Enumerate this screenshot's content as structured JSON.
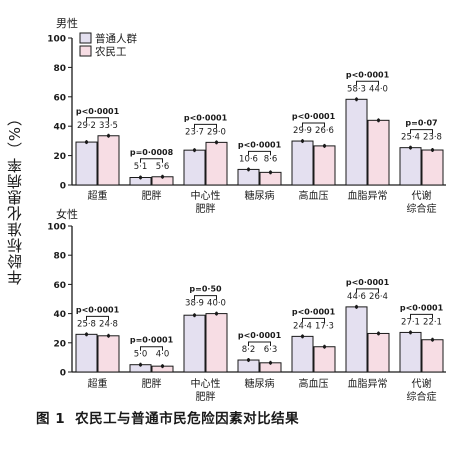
{
  "figure": {
    "caption_label": "图 1",
    "caption_text": "农民工与普通市民危险因素对比结果"
  },
  "chart_data": [
    {
      "type": "bar",
      "title": "男性",
      "ylabel": "年龄标准化患病率（%）",
      "ylim": [
        0,
        100
      ],
      "yticks": [
        0,
        20,
        40,
        60,
        80,
        100
      ],
      "categories": [
        "超重",
        "肥胖",
        "中心性\n肥胖",
        "糖尿病",
        "高血压",
        "血脂异常",
        "代谢\n综合症"
      ],
      "series": [
        {
          "name": "普通人群",
          "color": "#e4e0f0",
          "values": [
            29.2,
            5.1,
            23.7,
            10.6,
            29.9,
            58.3,
            25.4
          ]
        },
        {
          "name": "农民工",
          "color": "#f7dde4",
          "values": [
            33.5,
            5.6,
            29.0,
            8.6,
            26.6,
            44.0,
            23.8
          ]
        }
      ],
      "value_labels": [
        [
          "29·2",
          "33·5"
        ],
        [
          "5·1",
          "5·6"
        ],
        [
          "23·7",
          "29·0"
        ],
        [
          "10·6",
          "8·6"
        ],
        [
          "29·9",
          "26·6"
        ],
        [
          "58·3",
          "44·0"
        ],
        [
          "25·4",
          "23·8"
        ]
      ],
      "p_values": [
        "p<0·0001",
        "p=0·0008",
        "p<0·0001",
        "p<0·0001",
        "p<0·0001",
        "p<0·0001",
        "p=0·07"
      ],
      "legend": "top-left"
    },
    {
      "type": "bar",
      "title": "女性",
      "ylim": [
        0,
        100
      ],
      "yticks": [
        0,
        20,
        40,
        60,
        80,
        100
      ],
      "categories": [
        "超重",
        "肥胖",
        "中心性\n肥胖",
        "糖尿病",
        "高血压",
        "血脂异常",
        "代谢\n综合症"
      ],
      "series": [
        {
          "name": "普通人群",
          "color": "#e4e0f0",
          "values": [
            25.8,
            5.0,
            38.9,
            8.2,
            24.4,
            44.6,
            27.1
          ]
        },
        {
          "name": "农民工",
          "color": "#f7dde4",
          "values": [
            24.8,
            4.0,
            40.0,
            6.3,
            17.3,
            26.4,
            22.1
          ]
        }
      ],
      "value_labels": [
        [
          "25·8",
          "24·8"
        ],
        [
          "5·0",
          "4·0"
        ],
        [
          "38·9",
          "40·0"
        ],
        [
          "8·2",
          "6·3"
        ],
        [
          "24·4",
          "17·3"
        ],
        [
          "44·6",
          "26·4"
        ],
        [
          "27·1",
          "22·1"
        ]
      ],
      "p_values": [
        "p<0·0001",
        "p=0·0001",
        "p=0·50",
        "p<0·0001",
        "p<0·0001",
        "p<0·0001",
        "p<0·0001"
      ]
    }
  ]
}
